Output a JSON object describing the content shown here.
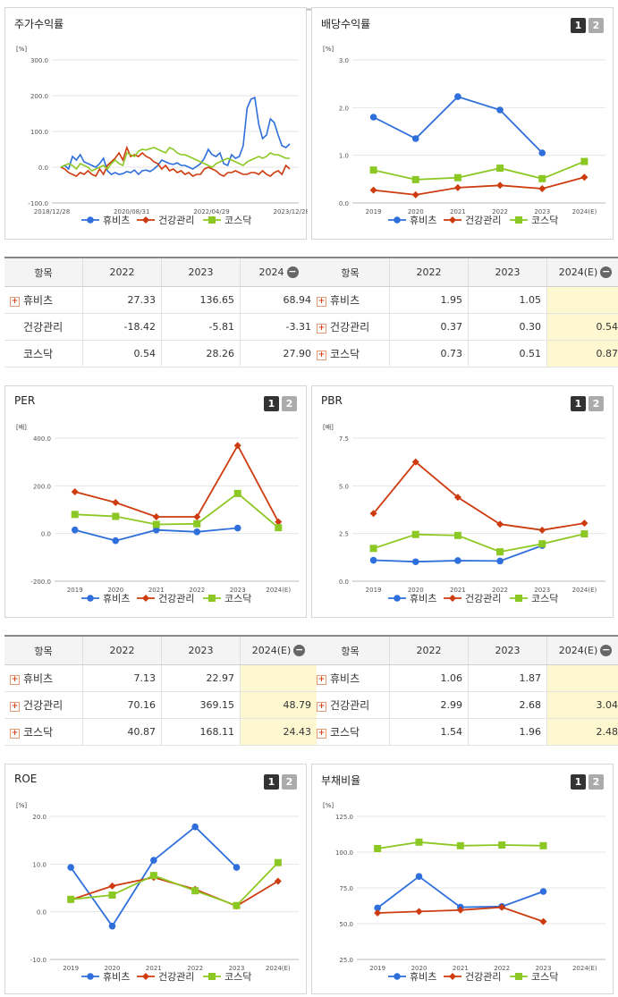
{
  "colors": {
    "hubiz": "#2e6fdc",
    "health": "#cd3b0e",
    "kosdaq": "#8cc823"
  },
  "legend": [
    "휴비츠",
    "건강관리",
    "코스닥"
  ],
  "ui": {
    "tab1": "1",
    "tab2": "2",
    "expand_symbol": "+",
    "collapse_symbol": "−"
  },
  "panels": {
    "stock": {
      "title": "주가수익률"
    },
    "dividend": {
      "title": "배당수익률"
    },
    "per": {
      "title": "PER"
    },
    "pbr": {
      "title": "PBR"
    },
    "roe": {
      "title": "ROE"
    },
    "debt": {
      "title": "부채비율"
    }
  },
  "tables": {
    "stock": {
      "headers": [
        "항목",
        "2022",
        "2023",
        "2024"
      ],
      "rows": [
        {
          "name": "휴비츠",
          "expand": true,
          "values": [
            "27.33",
            "136.65",
            "68.94"
          ]
        },
        {
          "name": "건강관리",
          "expand": false,
          "values": [
            "-18.42",
            "-5.81",
            "-3.31"
          ]
        },
        {
          "name": "코스닥",
          "expand": false,
          "values": [
            "0.54",
            "28.26",
            "27.90"
          ]
        }
      ]
    },
    "dividend": {
      "headers": [
        "항목",
        "2022",
        "2023",
        "2024(E)"
      ],
      "rows": [
        {
          "name": "휴비츠",
          "expand": true,
          "values": [
            "1.95",
            "1.05",
            ""
          ]
        },
        {
          "name": "건강관리",
          "expand": true,
          "values": [
            "0.37",
            "0.30",
            "0.54"
          ]
        },
        {
          "name": "코스닥",
          "expand": true,
          "values": [
            "0.73",
            "0.51",
            "0.87"
          ]
        }
      ]
    },
    "per": {
      "headers": [
        "항목",
        "2022",
        "2023",
        "2024(E)"
      ],
      "rows": [
        {
          "name": "휴비츠",
          "expand": true,
          "values": [
            "7.13",
            "22.97",
            ""
          ]
        },
        {
          "name": "건강관리",
          "expand": true,
          "values": [
            "70.16",
            "369.15",
            "48.79"
          ]
        },
        {
          "name": "코스닥",
          "expand": true,
          "values": [
            "40.87",
            "168.11",
            "24.43"
          ]
        }
      ]
    },
    "pbr": {
      "headers": [
        "항목",
        "2022",
        "2023",
        "2024(E)"
      ],
      "rows": [
        {
          "name": "휴비츠",
          "expand": true,
          "values": [
            "1.06",
            "1.87",
            ""
          ]
        },
        {
          "name": "건강관리",
          "expand": true,
          "values": [
            "2.99",
            "2.68",
            "3.04"
          ]
        },
        {
          "name": "코스닥",
          "expand": true,
          "values": [
            "1.54",
            "1.96",
            "2.48"
          ]
        }
      ]
    }
  },
  "chart_data": [
    {
      "id": "stock",
      "type": "line",
      "unit": "[%]",
      "ylim": [
        -100,
        300
      ],
      "yticks": [
        "300.0",
        "200.0",
        "100.0",
        "0.0",
        "-100.0"
      ],
      "xticks": [
        "2018/12/28",
        "2020/08/31",
        "2022/04/29",
        "2023/12/28"
      ],
      "series": [
        {
          "name": "휴비츠",
          "values": [
            0,
            5,
            -5,
            30,
            20,
            35,
            15,
            10,
            5,
            0,
            10,
            25,
            -10,
            -20,
            -15,
            -20,
            -18,
            -12,
            -15,
            -8,
            -20,
            -10,
            -8,
            -12,
            -5,
            5,
            20,
            15,
            10,
            8,
            12,
            5,
            5,
            0,
            -5,
            2,
            10,
            25,
            50,
            35,
            30,
            40,
            10,
            5,
            35,
            25,
            30,
            60,
            165,
            190,
            195,
            120,
            80,
            90,
            135,
            125,
            90,
            60,
            55,
            65
          ]
        },
        {
          "name": "건강관리",
          "values": [
            0,
            -5,
            -15,
            -20,
            -25,
            -15,
            -20,
            -10,
            -20,
            -25,
            -5,
            -20,
            5,
            15,
            25,
            40,
            20,
            55,
            30,
            35,
            30,
            40,
            30,
            25,
            15,
            10,
            -5,
            5,
            -10,
            -5,
            -15,
            -10,
            -20,
            -15,
            -25,
            -20,
            -20,
            -5,
            0,
            -5,
            -10,
            -20,
            -25,
            -15,
            -15,
            -10,
            -15,
            -20,
            -20,
            -15,
            -15,
            -20,
            -10,
            -20,
            -25,
            -15,
            -10,
            -20,
            5,
            -5
          ]
        },
        {
          "name": "코스닥",
          "values": [
            0,
            5,
            10,
            5,
            -5,
            10,
            5,
            0,
            -10,
            -5,
            0,
            5,
            -5,
            10,
            20,
            10,
            5,
            40,
            35,
            30,
            45,
            50,
            48,
            52,
            55,
            50,
            45,
            40,
            55,
            50,
            40,
            35,
            35,
            30,
            25,
            20,
            15,
            10,
            5,
            0,
            10,
            15,
            20,
            25,
            20,
            15,
            10,
            5,
            15,
            20,
            25,
            30,
            25,
            30,
            40,
            35,
            35,
            30,
            25,
            25
          ]
        }
      ]
    },
    {
      "id": "dividend",
      "type": "line",
      "unit": "[%]",
      "ylim": [
        0,
        3
      ],
      "yticks": [
        "3.0",
        "2.0",
        "1.0",
        "0.0"
      ],
      "categories": [
        "2019",
        "2020",
        "2021",
        "2022",
        "2023",
        "2024(E)"
      ],
      "series": [
        {
          "name": "휴비츠",
          "values": [
            1.8,
            1.35,
            2.23,
            1.95,
            1.05,
            null
          ]
        },
        {
          "name": "건강관리",
          "values": [
            0.27,
            0.17,
            0.32,
            0.37,
            0.3,
            0.54
          ]
        },
        {
          "name": "코스닥",
          "values": [
            0.69,
            0.49,
            0.53,
            0.73,
            0.51,
            0.87
          ]
        }
      ]
    },
    {
      "id": "per",
      "type": "line",
      "unit": "[배]",
      "ylim": [
        -200,
        400
      ],
      "yticks": [
        "400.0",
        "200.0",
        "0.0",
        "-200.0"
      ],
      "categories": [
        "2019",
        "2020",
        "2021",
        "2022",
        "2023",
        "2024(E)"
      ],
      "series": [
        {
          "name": "휴비츠",
          "values": [
            15,
            -30,
            15,
            7.13,
            22.97,
            null
          ]
        },
        {
          "name": "건강관리",
          "values": [
            175,
            130,
            70,
            70.16,
            369.15,
            48.79
          ]
        },
        {
          "name": "코스닥",
          "values": [
            80,
            72,
            38,
            40.87,
            168.11,
            24.43
          ]
        }
      ]
    },
    {
      "id": "pbr",
      "type": "line",
      "unit": "[배]",
      "ylim": [
        0,
        7.5
      ],
      "yticks": [
        "7.5",
        "5.0",
        "2.5",
        "0.0"
      ],
      "categories": [
        "2019",
        "2020",
        "2021",
        "2022",
        "2023",
        "2024(E)"
      ],
      "series": [
        {
          "name": "휴비츠",
          "values": [
            1.1,
            1.02,
            1.08,
            1.06,
            1.87,
            null
          ]
        },
        {
          "name": "건강관리",
          "values": [
            3.55,
            6.25,
            4.4,
            2.99,
            2.68,
            3.04
          ]
        },
        {
          "name": "코스닥",
          "values": [
            1.72,
            2.45,
            2.4,
            1.54,
            1.96,
            2.48
          ]
        }
      ]
    },
    {
      "id": "roe",
      "type": "line",
      "unit": "[%]",
      "ylim": [
        -10,
        20
      ],
      "yticks": [
        "20.0",
        "10.0",
        "0.0",
        "-10.0"
      ],
      "categories": [
        "2019",
        "2020",
        "2021",
        "2022",
        "2023",
        "2024(E)"
      ],
      "series": [
        {
          "name": "휴비츠",
          "values": [
            9.3,
            -3.0,
            10.8,
            17.8,
            9.3,
            null
          ]
        },
        {
          "name": "건강관리",
          "values": [
            2.5,
            5.4,
            7.2,
            4.7,
            1.2,
            6.4
          ]
        },
        {
          "name": "코스닥",
          "values": [
            2.6,
            3.5,
            7.6,
            4.4,
            1.3,
            10.3
          ]
        }
      ]
    },
    {
      "id": "debt",
      "type": "line",
      "unit": "[%]",
      "ylim": [
        25,
        125
      ],
      "yticks": [
        "125.0",
        "100.0",
        "75.0",
        "50.0",
        "25.0"
      ],
      "categories": [
        "2019",
        "2020",
        "2021",
        "2022",
        "2023",
        "2024(E)"
      ],
      "series": [
        {
          "name": "휴비츠",
          "values": [
            61,
            83,
            61.5,
            62,
            72.5,
            null
          ]
        },
        {
          "name": "건강관리",
          "values": [
            57.5,
            58.5,
            59.5,
            61.5,
            51.5,
            null
          ]
        },
        {
          "name": "코스닥",
          "values": [
            102.5,
            107,
            104.5,
            105,
            104.5,
            null
          ]
        }
      ]
    }
  ]
}
